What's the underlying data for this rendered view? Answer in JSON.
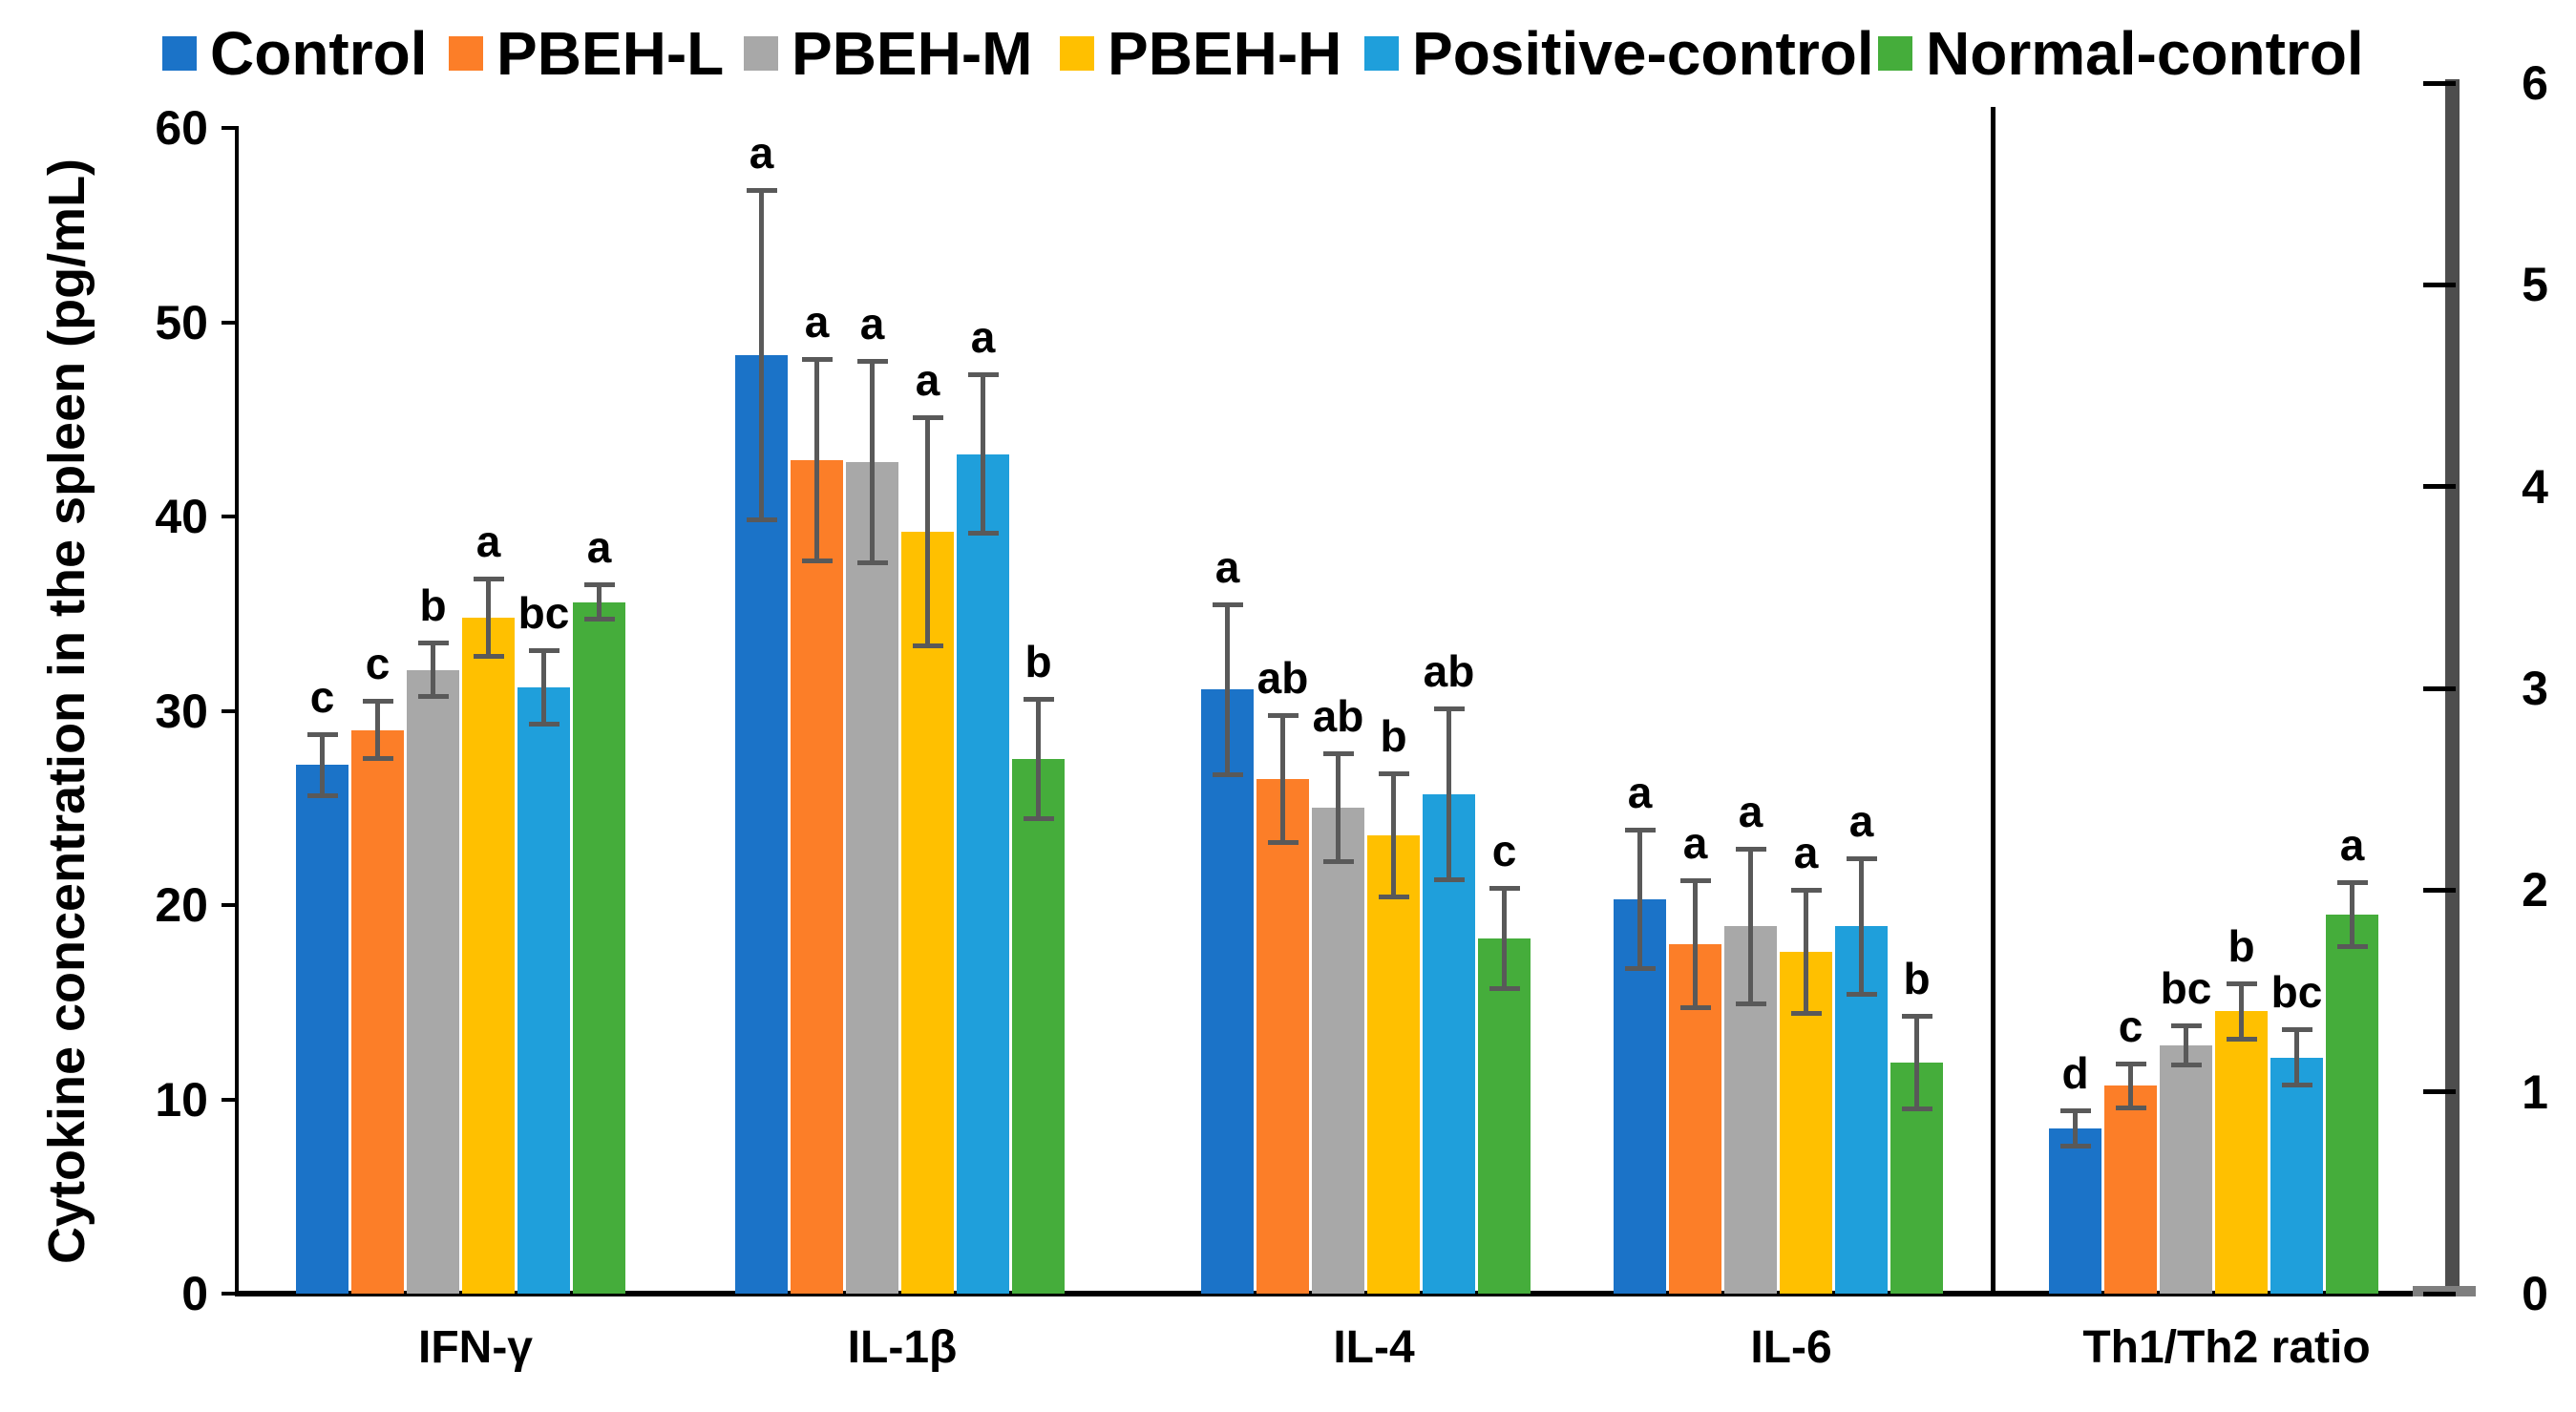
{
  "chart_data": {
    "type": "bar",
    "title": "",
    "categories": [
      "IFN-γ",
      "IL-1β",
      "IL-4",
      "IL-6",
      "Th1/Th2 ratio"
    ],
    "category_axis": [
      "left",
      "left",
      "left",
      "left",
      "right"
    ],
    "series": [
      {
        "name": "Control",
        "color": "#1B73C8",
        "values": [
          27.2,
          48.3,
          31.1,
          20.3,
          0.82
        ],
        "errors": [
          1.6,
          8.5,
          4.4,
          3.6,
          0.09
        ],
        "sig_letters": [
          "c",
          "a",
          "a",
          "a",
          "d"
        ]
      },
      {
        "name": "PBEH-L",
        "color": "#FC7E28",
        "values": [
          29.0,
          42.9,
          26.5,
          18.0,
          1.03
        ],
        "errors": [
          1.5,
          5.2,
          3.3,
          3.3,
          0.11
        ],
        "sig_letters": [
          "c",
          "a",
          "ab",
          "a",
          "c"
        ]
      },
      {
        "name": "PBEH-M",
        "color": "#A8A8A8",
        "values": [
          32.1,
          42.8,
          25.0,
          18.9,
          1.23
        ],
        "errors": [
          1.4,
          5.2,
          2.8,
          4.0,
          0.1
        ],
        "sig_letters": [
          "b",
          "a",
          "ab",
          "a",
          "bc"
        ]
      },
      {
        "name": "PBEH-H",
        "color": "#FFC000",
        "values": [
          34.8,
          39.2,
          23.6,
          17.6,
          1.4
        ],
        "errors": [
          2.0,
          5.9,
          3.2,
          3.2,
          0.14
        ],
        "sig_letters": [
          "a",
          "a",
          "b",
          "a",
          "b"
        ]
      },
      {
        "name": "Positive-control",
        "color": "#1F9FDB",
        "values": [
          31.2,
          43.2,
          25.7,
          18.9,
          1.17
        ],
        "errors": [
          1.9,
          4.1,
          4.4,
          3.5,
          0.14
        ],
        "sig_letters": [
          "bc",
          "a",
          "ab",
          "a",
          "bc"
        ]
      },
      {
        "name": "Normal-control",
        "color": "#45AD3B",
        "values": [
          35.6,
          27.5,
          18.3,
          11.9,
          1.88
        ],
        "errors": [
          0.9,
          3.1,
          2.6,
          2.4,
          0.16
        ],
        "sig_letters": [
          "a",
          "b",
          "c",
          "b",
          "a"
        ]
      }
    ],
    "left_axis": {
      "label": "Cytokine concentration in the spleen (pg/mL)",
      "min": 0,
      "max": 60,
      "step": 10,
      "ticks": [
        0,
        10,
        20,
        30,
        40,
        50,
        60
      ]
    },
    "right_axis": {
      "label": "",
      "min": 0,
      "max": 6,
      "step": 1,
      "ticks": [
        0,
        1,
        2,
        3,
        4,
        5,
        6
      ]
    },
    "error_bar_color": "#595959",
    "legend_position": "top",
    "grid": false
  }
}
